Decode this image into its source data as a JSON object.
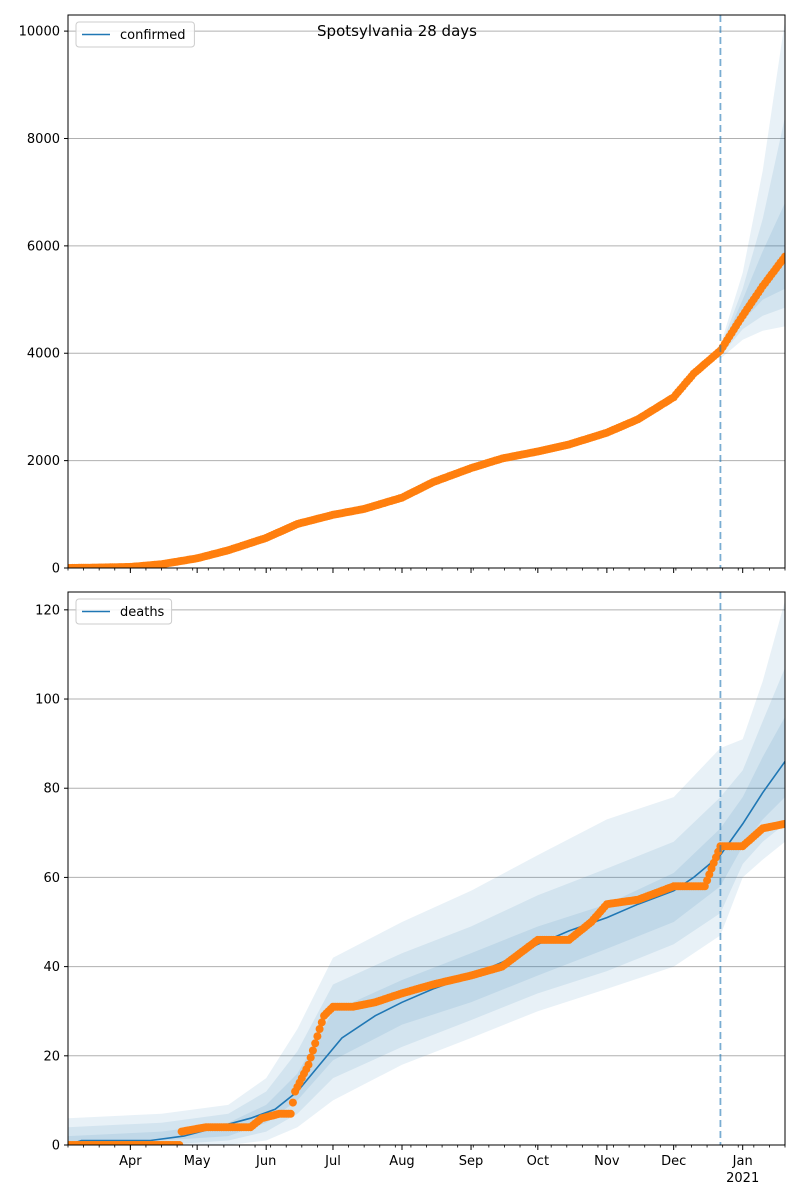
{
  "figure": {
    "title": "Spotsylvania 28 days",
    "x_tick_labels": [
      "Apr",
      "May",
      "Jun",
      "Jul",
      "Aug",
      "Sep",
      "Oct",
      "Nov",
      "Dec",
      "Jan"
    ],
    "x_year_label": "2021"
  },
  "colors": {
    "model_line": "#1f77b4",
    "band_fill": "#1f77b4",
    "observed_points": "#ff7f0e",
    "forecast_line": "#1f77b4",
    "grid": "#b0b0b0"
  },
  "chart_data": [
    {
      "type": "line",
      "panel": "top",
      "legend": [
        "confirmed"
      ],
      "legend_position": "upper-left",
      "grid": "horizontal",
      "xlim": [
        "2020-03-04",
        "2021-01-20"
      ],
      "ylim": [
        0,
        10300
      ],
      "y_ticks": [
        0,
        2000,
        4000,
        6000,
        8000,
        10000
      ],
      "forecast_start": "2020-12-22",
      "series": [
        {
          "name": "confirmed",
          "x": [
            "2020-03-04",
            "2020-03-20",
            "2020-04-01",
            "2020-04-15",
            "2020-05-01",
            "2020-05-15",
            "2020-06-01",
            "2020-06-15",
            "2020-07-01",
            "2020-07-15",
            "2020-08-01",
            "2020-08-15",
            "2020-09-01",
            "2020-09-15",
            "2020-10-01",
            "2020-10-15",
            "2020-11-01",
            "2020-11-15",
            "2020-12-01",
            "2020-12-10",
            "2020-12-22",
            "2021-01-01",
            "2021-01-10",
            "2021-01-20"
          ],
          "y": [
            0,
            10,
            20,
            70,
            180,
            330,
            560,
            820,
            990,
            1100,
            1310,
            1600,
            1860,
            2040,
            2170,
            2300,
            2520,
            2770,
            3180,
            3620,
            4000,
            4750,
            5300,
            5800
          ]
        }
      ],
      "bands": [
        {
          "x": [
            "2020-12-22",
            "2021-01-01",
            "2021-01-10",
            "2021-01-20"
          ],
          "low": [
            3900,
            4250,
            4420,
            4500
          ],
          "high": [
            4150,
            5500,
            7400,
            10200
          ]
        },
        {
          "x": [
            "2020-12-22",
            "2021-01-01",
            "2021-01-10",
            "2021-01-20"
          ],
          "low": [
            3950,
            4450,
            4700,
            4850
          ],
          "high": [
            4100,
            5200,
            6500,
            8400
          ]
        },
        {
          "x": [
            "2020-12-22",
            "2021-01-01",
            "2021-01-10",
            "2021-01-20"
          ],
          "low": [
            3980,
            4600,
            5000,
            5200
          ],
          "high": [
            4060,
            5000,
            5900,
            6800
          ]
        }
      ],
      "observed": {
        "x": [
          "2020-03-04",
          "2020-03-20",
          "2020-04-01",
          "2020-04-15",
          "2020-05-01",
          "2020-05-15",
          "2020-06-01",
          "2020-06-15",
          "2020-07-01",
          "2020-07-15",
          "2020-08-01",
          "2020-08-15",
          "2020-09-01",
          "2020-09-15",
          "2020-10-01",
          "2020-10-15",
          "2020-11-01",
          "2020-11-15",
          "2020-12-01",
          "2020-12-10",
          "2020-12-22",
          "2021-01-01",
          "2021-01-10",
          "2021-01-20"
        ],
        "y": [
          0,
          10,
          20,
          70,
          180,
          330,
          560,
          820,
          990,
          1100,
          1310,
          1600,
          1860,
          2040,
          2170,
          2300,
          2520,
          2770,
          3180,
          3620,
          4050,
          4700,
          5250,
          5800
        ]
      }
    },
    {
      "type": "line",
      "panel": "bottom",
      "legend": [
        "deaths"
      ],
      "legend_position": "upper-left",
      "grid": "horizontal",
      "xlim": [
        "2020-03-04",
        "2021-01-20"
      ],
      "ylim": [
        0,
        124
      ],
      "y_ticks": [
        0,
        20,
        40,
        60,
        80,
        100,
        120
      ],
      "forecast_start": "2020-12-22",
      "series": [
        {
          "name": "deaths",
          "x": [
            "2020-03-04",
            "2020-03-10",
            "2020-04-10",
            "2020-04-25",
            "2020-05-10",
            "2020-05-25",
            "2020-06-05",
            "2020-06-15",
            "2020-06-25",
            "2020-07-05",
            "2020-07-20",
            "2020-08-01",
            "2020-08-15",
            "2020-09-01",
            "2020-09-15",
            "2020-10-01",
            "2020-10-15",
            "2020-11-01",
            "2020-11-15",
            "2020-12-01",
            "2020-12-10",
            "2020-12-22",
            "2021-01-01",
            "2021-01-10",
            "2021-01-20"
          ],
          "y": [
            0,
            1,
            1,
            2,
            4,
            6,
            8,
            12,
            18,
            24,
            29,
            32,
            35,
            38,
            41,
            45,
            48,
            51,
            54,
            57,
            60,
            65,
            72,
            79,
            86
          ]
        }
      ],
      "bands": [
        {
          "x": [
            "2020-03-04",
            "2020-04-15",
            "2020-05-15",
            "2020-06-01",
            "2020-06-15",
            "2020-07-01",
            "2020-08-01",
            "2020-09-01",
            "2020-10-01",
            "2020-11-01",
            "2020-12-01",
            "2020-12-22",
            "2021-01-01",
            "2021-01-10",
            "2021-01-20"
          ],
          "low": [
            0,
            0,
            0,
            1,
            4,
            10,
            18,
            24,
            30,
            35,
            40,
            47,
            60,
            64,
            68
          ],
          "high": [
            6,
            7,
            9,
            15,
            26,
            42,
            50,
            57,
            65,
            73,
            78,
            89,
            91,
            104,
            122
          ]
        },
        {
          "x": [
            "2020-03-04",
            "2020-04-15",
            "2020-05-15",
            "2020-06-01",
            "2020-06-15",
            "2020-07-01",
            "2020-08-01",
            "2020-09-01",
            "2020-10-01",
            "2020-11-01",
            "2020-12-01",
            "2020-12-22",
            "2021-01-01",
            "2021-01-10",
            "2021-01-20"
          ],
          "low": [
            0,
            0,
            1,
            3,
            7,
            15,
            22,
            28,
            34,
            39,
            45,
            52,
            63,
            68,
            72
          ],
          "high": [
            4,
            5,
            7,
            12,
            21,
            36,
            43,
            49,
            56,
            62,
            68,
            78,
            84,
            95,
            107
          ]
        },
        {
          "x": [
            "2020-03-04",
            "2020-04-15",
            "2020-05-15",
            "2020-06-01",
            "2020-06-15",
            "2020-07-01",
            "2020-08-01",
            "2020-09-01",
            "2020-10-01",
            "2020-11-01",
            "2020-12-01",
            "2020-12-22",
            "2021-01-01",
            "2021-01-10",
            "2021-01-20"
          ],
          "low": [
            0,
            1,
            2,
            5,
            10,
            19,
            27,
            32,
            38,
            44,
            50,
            58,
            67,
            73,
            78
          ],
          "high": [
            2,
            3,
            5,
            9,
            16,
            30,
            37,
            43,
            49,
            54,
            61,
            71,
            78,
            87,
            96
          ]
        }
      ],
      "observed": {
        "x": [
          "2020-03-04",
          "2020-04-23",
          "2020-04-24",
          "2020-05-05",
          "2020-05-25",
          "2020-05-30",
          "2020-06-07",
          "2020-06-12",
          "2020-06-14",
          "2020-06-20",
          "2020-06-25",
          "2020-06-27",
          "2020-07-01",
          "2020-07-10",
          "2020-07-20",
          "2020-08-01",
          "2020-08-15",
          "2020-09-01",
          "2020-09-15",
          "2020-10-01",
          "2020-10-15",
          "2020-10-25",
          "2020-11-01",
          "2020-11-15",
          "2020-12-01",
          "2020-12-15",
          "2020-12-18",
          "2020-12-22",
          "2021-01-01",
          "2021-01-10",
          "2021-01-20"
        ],
        "y": [
          0,
          0,
          3,
          4,
          4,
          6,
          7,
          7,
          12,
          18,
          26,
          29,
          31,
          31,
          32,
          34,
          36,
          38,
          40,
          46,
          46,
          50,
          54,
          55,
          58,
          58,
          62,
          67,
          67,
          71,
          72
        ]
      }
    }
  ]
}
